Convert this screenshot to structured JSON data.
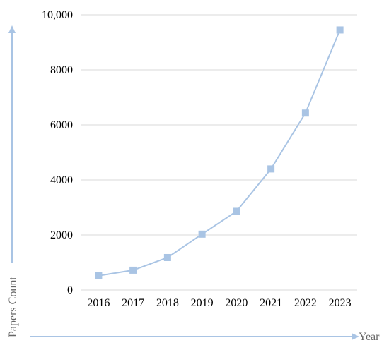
{
  "chart_data": {
    "type": "line",
    "title": "",
    "xlabel": "Year",
    "ylabel": "Papers Count",
    "x": [
      "2016",
      "2017",
      "2018",
      "2019",
      "2020",
      "2021",
      "2022",
      "2023"
    ],
    "series": [
      {
        "values": [
          520,
          720,
          1180,
          2030,
          2860,
          4400,
          6430,
          9450
        ]
      }
    ],
    "ylim": [
      0,
      10000
    ],
    "yticks": [
      0,
      2000,
      4000,
      6000,
      8000,
      10000
    ],
    "ytick_labels": [
      "0",
      "2000",
      "4000",
      "6000",
      "8000",
      "10,000"
    ],
    "grid": true,
    "marker": "square",
    "line_color": "#a9c4e4",
    "marker_color": "#a9c4e4",
    "axis_arrow_color": "#a9c4e4",
    "grid_color": "#d9d9d9",
    "legend": "none"
  }
}
